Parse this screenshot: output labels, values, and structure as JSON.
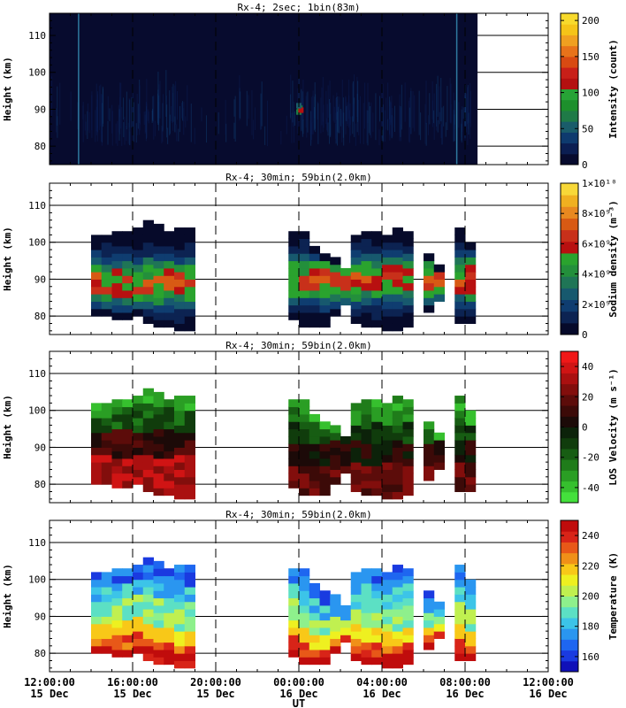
{
  "chart_data": [
    {
      "type": "heatmap",
      "title": "Rx-4;   2sec; 1bin(83m)",
      "ylabel": "Height (km)",
      "ylim": [
        75,
        116
      ],
      "yticks": [
        80,
        90,
        100,
        110
      ],
      "colorbar_label": "Intensity (count)",
      "colorbar_range": [
        0,
        210
      ],
      "colorbar_ticks": [
        "0",
        "50",
        "100",
        "150",
        "200"
      ],
      "colors": [
        "#070b2e",
        "#0b1e52",
        "#0e3a6e",
        "#1a5c6a",
        "#1f7a47",
        "#1d8f2c",
        "#27a336",
        "#b41010",
        "#c81f18",
        "#d84a12",
        "#e8731a",
        "#f0a020",
        "#f5c418",
        "#f8da2c"
      ],
      "time_range_hours": [
        12.0,
        36.0
      ],
      "data_time_span": [
        12.0,
        32.6
      ],
      "vertical_lines_hours": [
        13.4,
        31.6
      ],
      "notable": "mostly near-zero counts, faint echoes 80-95 km, brightest spot near 00:00 at ~89 km"
    },
    {
      "type": "heatmap",
      "title": "Rx-4; 30min; 59bin(2.0km)",
      "ylabel": "Height (km)",
      "ylim": [
        75,
        116
      ],
      "yticks": [
        80,
        90,
        100,
        110
      ],
      "colorbar_label": "Sodium density (m⁻³)",
      "colorbar_range": [
        0,
        10000000000.0
      ],
      "colorbar_ticks": [
        "0",
        "2×10⁹",
        "4×10⁹",
        "6×10⁹",
        "8×10⁹",
        "1×10¹⁰"
      ],
      "colors": [
        "#060a2a",
        "#0c2352",
        "#0f3d70",
        "#17596e",
        "#1f7556",
        "#238f3b",
        "#2aa32e",
        "#b81010",
        "#c8301a",
        "#d85a14",
        "#e88820",
        "#f0b020",
        "#f8d838"
      ],
      "time_step_hours": 0.5,
      "height_step_km": 2,
      "profile_bottom_km": [
        80,
        79,
        80,
        79,
        80,
        77,
        77,
        77,
        76,
        76,
        77,
        78
      ],
      "gaps": "19:00-23:30, 01:30-02:00, 05:30-06:30, 07:00-07:30"
    },
    {
      "type": "heatmap",
      "title": "Rx-4; 30min; 59bin(2.0km)",
      "ylabel": "Height (km)",
      "ylim": [
        75,
        116
      ],
      "yticks": [
        80,
        90,
        100,
        110
      ],
      "colorbar_label": "LOS Velocity (m s⁻¹)",
      "colorbar_range": [
        -50,
        50
      ],
      "colorbar_ticks": [
        "-40",
        "-20",
        "0",
        "20",
        "40"
      ],
      "colors": [
        "#44e03c",
        "#36c02e",
        "#2a9e24",
        "#1f7c1a",
        "#175d13",
        "#103c0c",
        "#0c220a",
        "#1c0a08",
        "#3c0a08",
        "#5c0c0a",
        "#820e0c",
        "#aa1010",
        "#d01414",
        "#f01818"
      ]
    },
    {
      "type": "heatmap",
      "title": "Rx-4; 30min; 59bin(2.0km)",
      "ylabel": "Height (km)",
      "ylim": [
        75,
        116
      ],
      "yticks": [
        80,
        90,
        100,
        110
      ],
      "colorbar_label": "Temperature (K)",
      "colorbar_range": [
        150,
        250
      ],
      "colorbar_ticks": [
        "160",
        "180",
        "200",
        "220",
        "240"
      ],
      "colors": [
        "#1010b8",
        "#1a3ae0",
        "#1e66f0",
        "#2a96f0",
        "#3cc4e8",
        "#5ce0c4",
        "#8ef08c",
        "#c0f050",
        "#eef020",
        "#f8c818",
        "#f09018",
        "#e85818",
        "#d82418",
        "#c00c0c"
      ]
    }
  ],
  "xaxis": {
    "label": "UT",
    "range_hours": [
      12,
      36
    ],
    "major_ticks_hours": [
      12,
      16,
      20,
      24,
      28,
      32,
      36
    ],
    "tick_labels": [
      [
        "12:00:00",
        "15 Dec"
      ],
      [
        "16:00:00",
        "15 Dec"
      ],
      [
        "20:00:00",
        "15 Dec"
      ],
      [
        "00:00:00",
        "16 Dec"
      ],
      [
        "04:00:00",
        "16 Dec"
      ],
      [
        "08:00:00",
        "16 Dec"
      ],
      [
        "12:00:00",
        "16 Dec"
      ]
    ],
    "dashed_lines_hours": [
      16,
      20,
      24,
      28,
      32
    ]
  }
}
